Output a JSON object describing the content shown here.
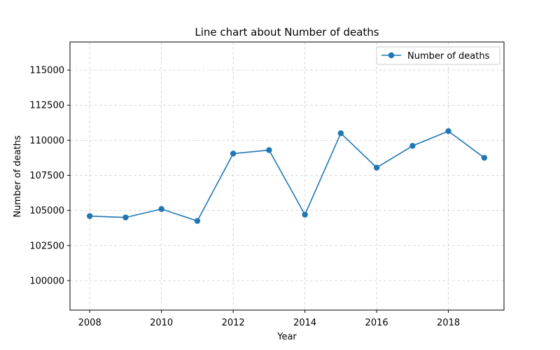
{
  "chart_data": {
    "type": "line",
    "title": "Line chart about Number of deaths",
    "xlabel": "Year",
    "ylabel": "Number of deaths",
    "x": [
      2008,
      2009,
      2010,
      2011,
      2012,
      2013,
      2014,
      2015,
      2016,
      2017,
      2018,
      2019
    ],
    "series": [
      {
        "name": "Number of deaths",
        "values": [
          104600,
          104500,
          105100,
          104250,
          109050,
          109300,
          104700,
          110500,
          108050,
          109600,
          110650,
          108750
        ],
        "color": "#1f77b4",
        "marker": "circle"
      }
    ],
    "xlim": [
      2007.45,
      2019.55
    ],
    "ylim": [
      97900,
      117000
    ],
    "xticks": [
      2008,
      2010,
      2012,
      2014,
      2016,
      2018
    ],
    "yticks": [
      100000,
      102500,
      105000,
      107500,
      110000,
      112500,
      115000
    ],
    "grid": true,
    "legend": "top-right"
  }
}
